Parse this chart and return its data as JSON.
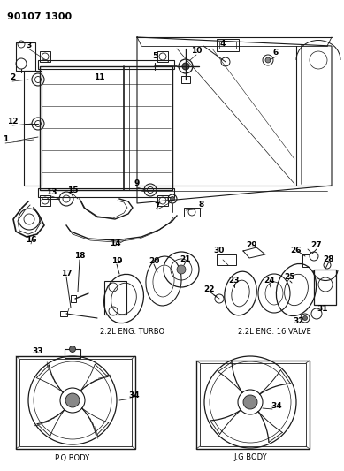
{
  "background_color": "#ffffff",
  "line_color": "#1a1a1a",
  "fig_width": 3.89,
  "fig_height": 5.33,
  "dpi": 100,
  "title": "90107 1300",
  "sub_turbo": "2.2L ENG. TURBO",
  "sub_16v": "2.2L ENG. 16 VALVE",
  "sub_pq": "P.Q BODY",
  "sub_jg": "J.G BODY"
}
